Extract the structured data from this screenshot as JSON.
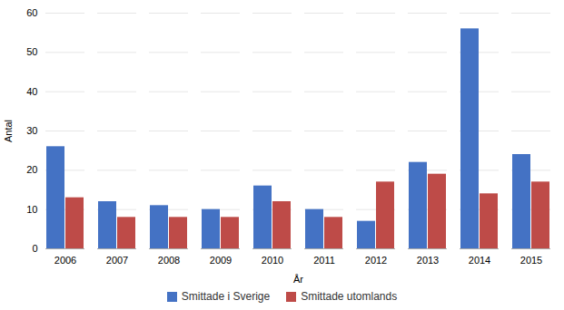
{
  "chart_data": {
    "type": "bar",
    "categories": [
      "2006",
      "2007",
      "2008",
      "2009",
      "2010",
      "2011",
      "2012",
      "2013",
      "2014",
      "2015"
    ],
    "series": [
      {
        "name": "Smittade i Sverige",
        "color": "#4472C4",
        "values": [
          26,
          12,
          11,
          10,
          16,
          10,
          7,
          22,
          56,
          24
        ]
      },
      {
        "name": "Smittade utomlands",
        "color": "#BE4B48",
        "values": [
          13,
          8,
          8,
          8,
          12,
          8,
          17,
          19,
          14,
          17
        ]
      }
    ],
    "xlabel": "År",
    "ylabel": "Antal",
    "ylim": [
      0,
      60
    ],
    "yticks": [
      0,
      10,
      20,
      30,
      40,
      50,
      60
    ],
    "grid": true,
    "legend": "bottom"
  }
}
